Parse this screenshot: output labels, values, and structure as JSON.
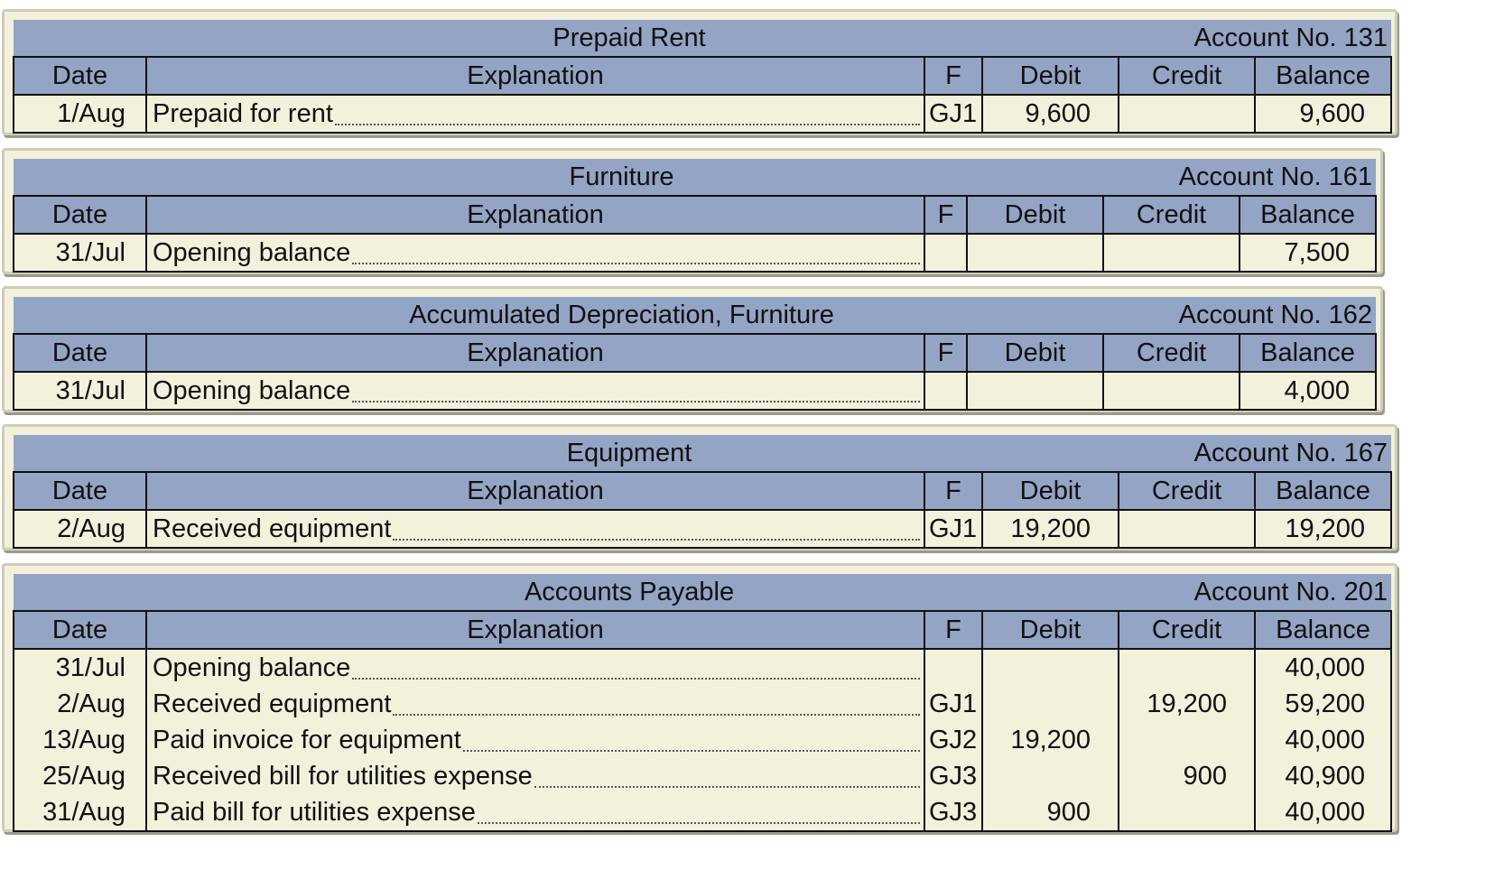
{
  "headers": {
    "date": "Date",
    "explanation": "Explanation",
    "f": "F",
    "debit": "Debit",
    "credit": "Credit",
    "balance": "Balance"
  },
  "accounts": [
    {
      "title": "Prepaid Rent",
      "number": "Account No. 131",
      "rows": [
        {
          "date": "1/Aug",
          "explanation": "Prepaid for rent",
          "f": "GJ1",
          "debit": "9,600",
          "credit": "",
          "balance": "9,600"
        }
      ]
    },
    {
      "title": "Furniture",
      "number": "Account No. 161",
      "rows": [
        {
          "date": "31/Jul",
          "explanation": "Opening balance",
          "f": "",
          "debit": "",
          "credit": "",
          "balance": "7,500"
        }
      ]
    },
    {
      "title": "Accumulated Depreciation, Furniture",
      "number": "Account No. 162",
      "rows": [
        {
          "date": "31/Jul",
          "explanation": "Opening balance",
          "f": "",
          "debit": "",
          "credit": "",
          "balance": "4,000"
        }
      ]
    },
    {
      "title": "Equipment",
      "number": "Account No. 167",
      "rows": [
        {
          "date": "2/Aug",
          "explanation": "Received equipment",
          "f": "GJ1",
          "debit": "19,200",
          "credit": "",
          "balance": "19,200"
        }
      ]
    },
    {
      "title": "Accounts Payable",
      "number": "Account No. 201",
      "rows": [
        {
          "date": "31/Jul",
          "explanation": "Opening balance",
          "f": "",
          "debit": "",
          "credit": "",
          "balance": "40,000"
        },
        {
          "date": "2/Aug",
          "explanation": "Received equipment",
          "f": "GJ1",
          "debit": "",
          "credit": "19,200",
          "balance": "59,200"
        },
        {
          "date": "13/Aug",
          "explanation": "Paid invoice for equipment",
          "f": "GJ2",
          "debit": "19,200",
          "credit": "",
          "balance": "40,000"
        },
        {
          "date": "25/Aug",
          "explanation": "Received bill for utilities expense",
          "f": "GJ3",
          "debit": "",
          "credit": "900",
          "balance": "40,900"
        },
        {
          "date": "31/Aug",
          "explanation": "Paid bill for utilities expense",
          "f": "GJ3",
          "debit": "900",
          "credit": "",
          "balance": "40,000"
        }
      ]
    }
  ]
}
